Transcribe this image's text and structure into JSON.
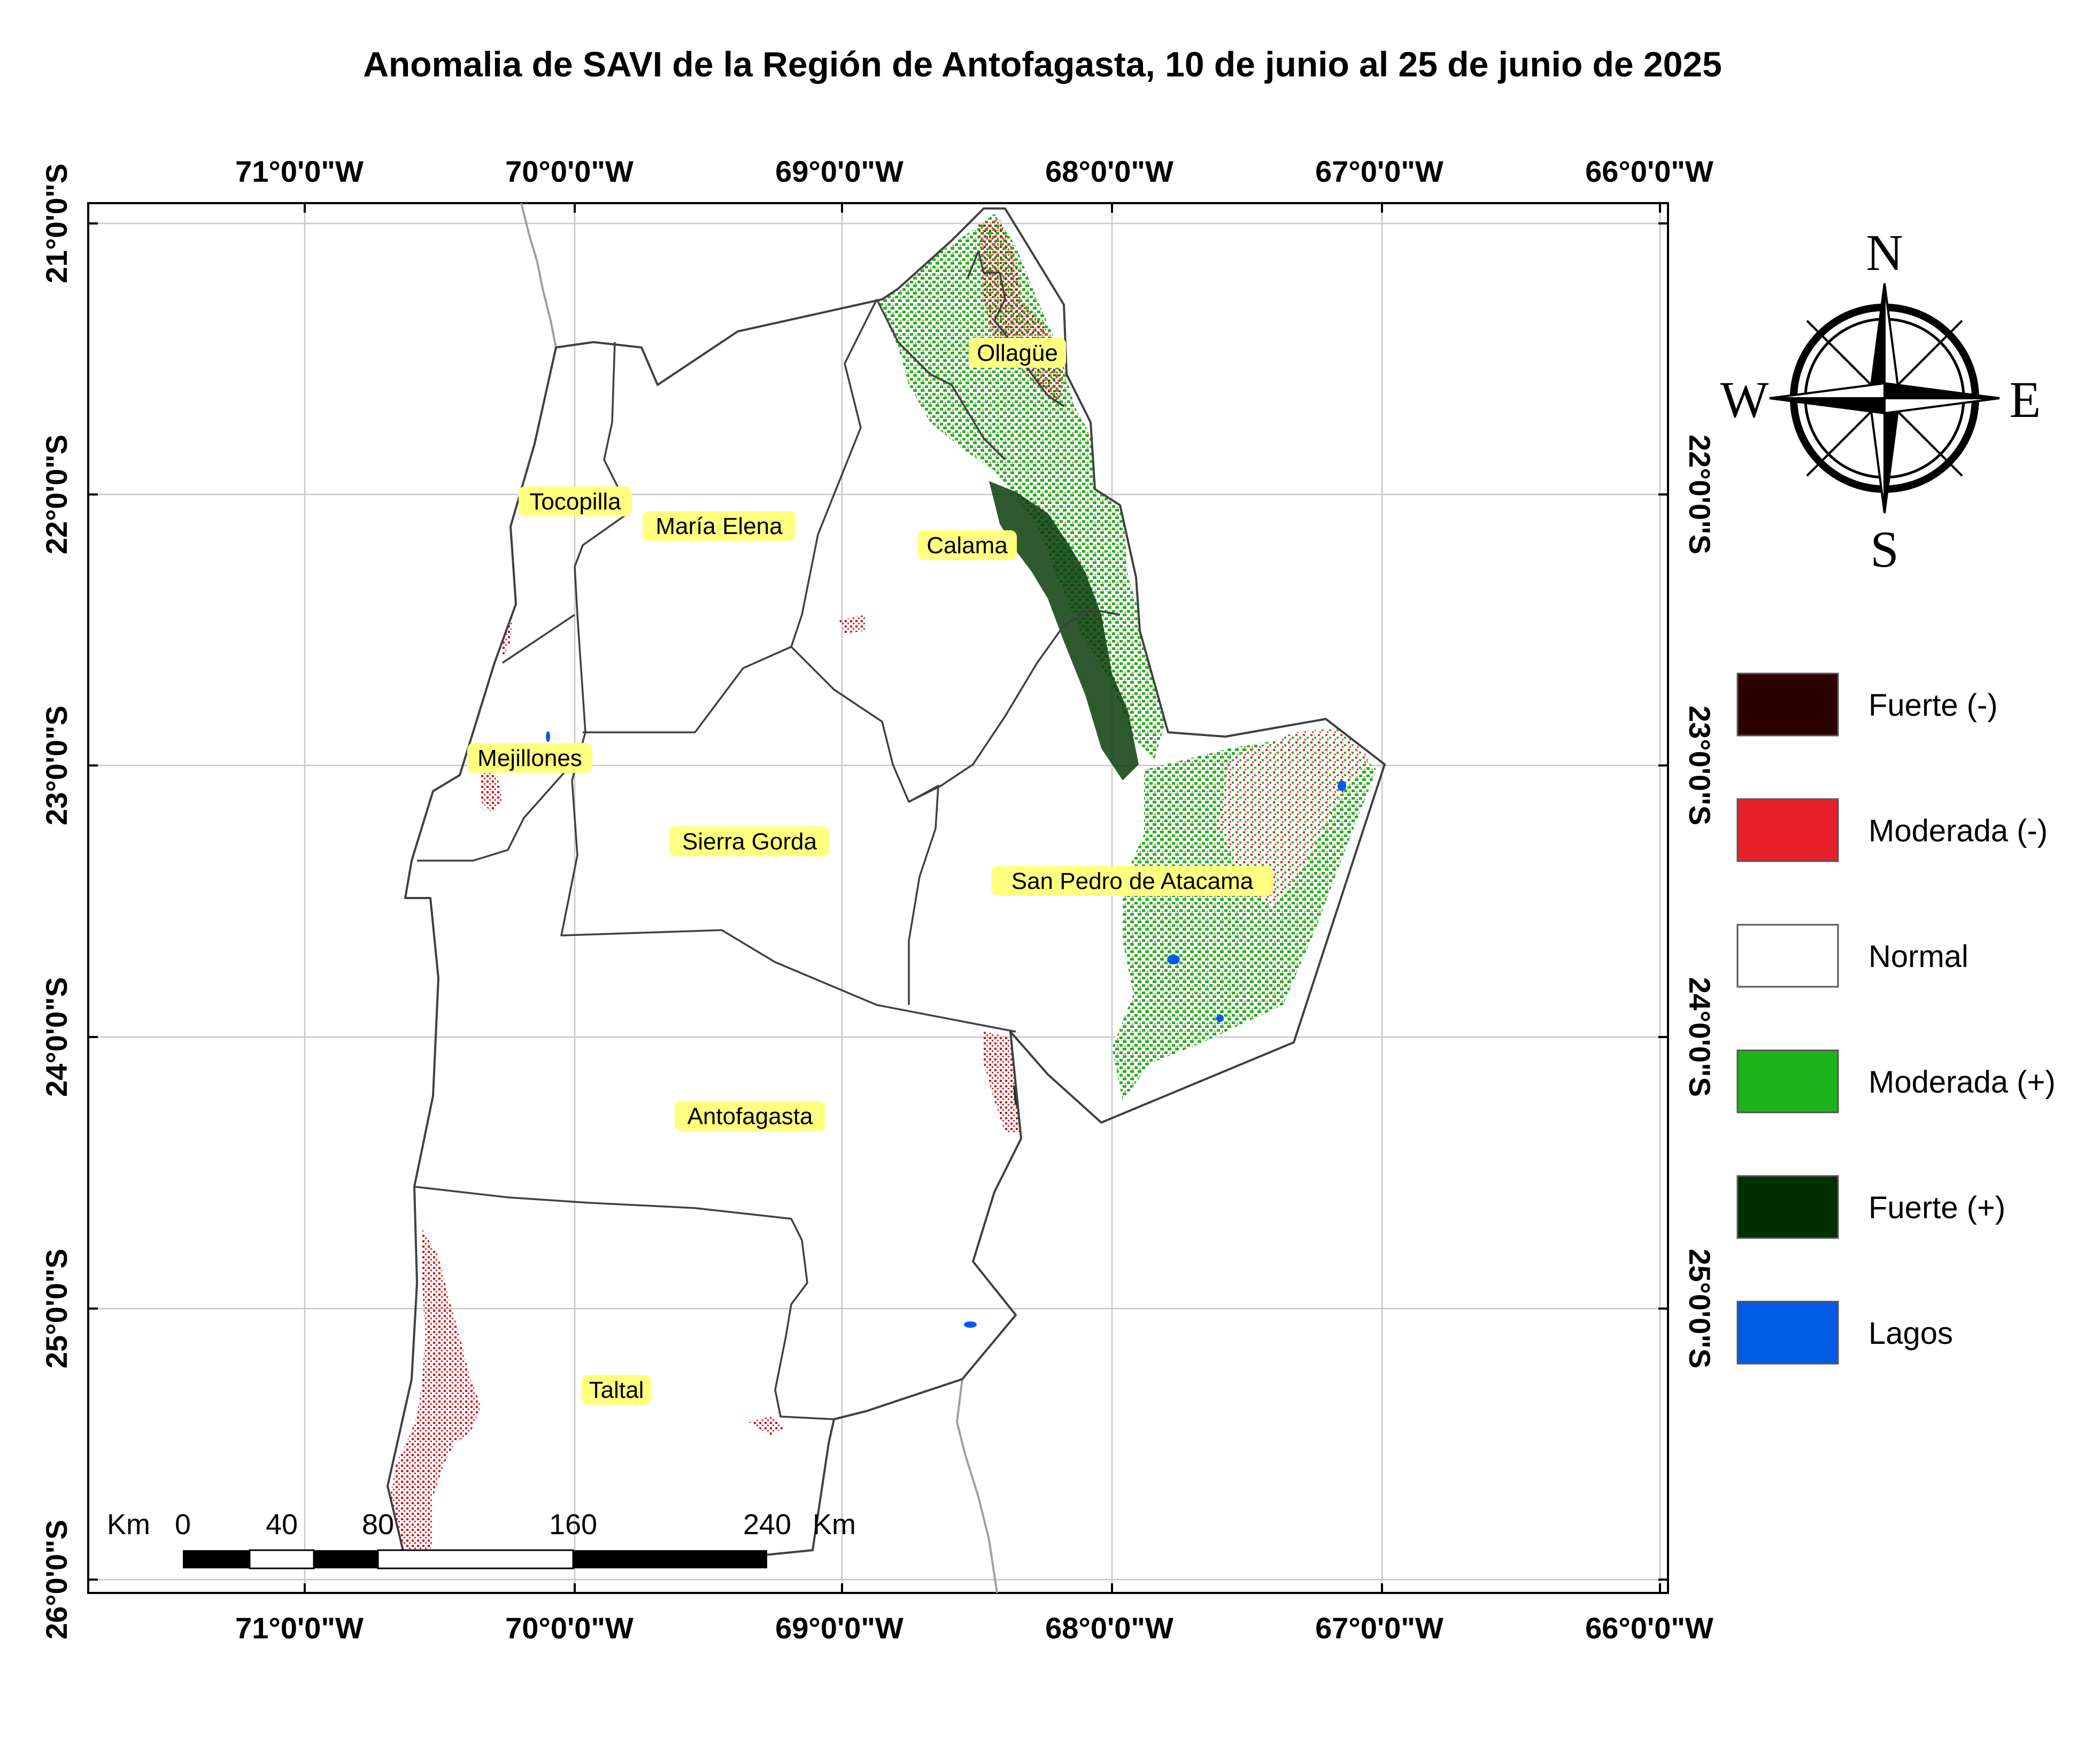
{
  "title": "Anomalia de SAVI de la Región de Antofagasta, 10 de junio al 25 de junio de 2025",
  "graticule": {
    "longitudes": [
      "71°0'0\"W",
      "70°0'0\"W",
      "69°0'0\"W",
      "68°0'0\"W",
      "67°0'0\"W",
      "66°0'0\"W"
    ],
    "latitudes": [
      "21°0'0\"S",
      "22°0'0\"S",
      "23°0'0\"S",
      "24°0'0\"S",
      "25°0'0\"S",
      "26°0'0\"S"
    ]
  },
  "communes": [
    "Ollagüe",
    "Tocopilla",
    "María Elena",
    "Calama",
    "Mejillones",
    "Sierra Gorda",
    "San Pedro de Atacama",
    "Antofagasta",
    "Taltal"
  ],
  "north_arrow": {
    "n": "N",
    "s": "S",
    "e": "E",
    "w": "W"
  },
  "legend": [
    {
      "label": "Fuerte (-)",
      "color": "#2a0000"
    },
    {
      "label": "Moderada (-)",
      "color": "#e8202a"
    },
    {
      "label": "Normal",
      "color": "#ffffff"
    },
    {
      "label": "Moderada (+)",
      "color": "#1db31d"
    },
    {
      "label": "Fuerte (+)",
      "color": "#003000"
    },
    {
      "label": "Lagos",
      "color": "#005ce6"
    }
  ],
  "scale_bar": {
    "unit": "Km",
    "ticks": [
      "0",
      "40",
      "80",
      "160",
      "240"
    ],
    "unit_right": "Km"
  }
}
